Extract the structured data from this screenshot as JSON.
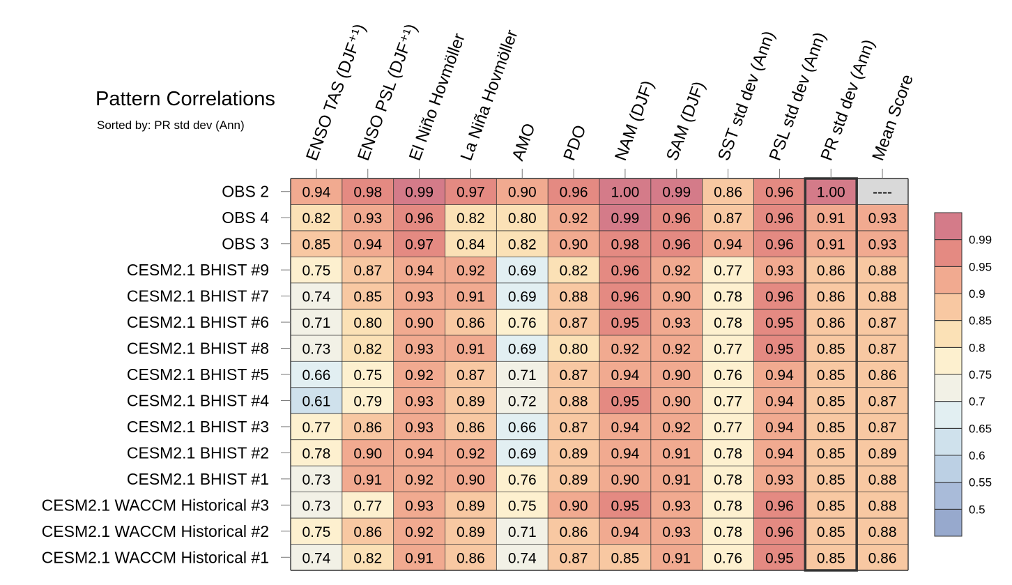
{
  "chart_data": {
    "type": "heatmap",
    "title": "Pattern Correlations",
    "subtitle": "Sorted by: PR std dev (Ann)",
    "columns": [
      "ENSO TAS (DJF⁺¹)",
      "ENSO PSL (DJF⁺¹)",
      "El Niño Hovmöller",
      "La Niña Hovmöller",
      "AMO",
      "PDO",
      "NAM (DJF)",
      "SAM (DJF)",
      "SST std dev (Ann)",
      "PSL std dev (Ann)",
      "PR std dev (Ann)",
      "Mean Score"
    ],
    "highlighted_column": "PR std dev (Ann)",
    "rows": [
      "OBS 2",
      "OBS 4",
      "OBS 3",
      "CESM2.1 BHIST #9",
      "CESM2.1 BHIST #7",
      "CESM2.1 BHIST #6",
      "CESM2.1 BHIST #8",
      "CESM2.1 BHIST #5",
      "CESM2.1 BHIST #4",
      "CESM2.1 BHIST #3",
      "CESM2.1 BHIST #2",
      "CESM2.1 BHIST #1",
      "CESM2.1 WACCM Historical #3",
      "CESM2.1 WACCM Historical #2",
      "CESM2.1 WACCM Historical #1"
    ],
    "values": [
      [
        "0.94",
        "0.98",
        "0.99",
        "0.97",
        "0.90",
        "0.96",
        "1.00",
        "0.99",
        "0.86",
        "0.96",
        "1.00",
        "----"
      ],
      [
        "0.82",
        "0.93",
        "0.96",
        "0.82",
        "0.80",
        "0.92",
        "0.99",
        "0.96",
        "0.87",
        "0.96",
        "0.91",
        "0.93"
      ],
      [
        "0.85",
        "0.94",
        "0.97",
        "0.84",
        "0.82",
        "0.90",
        "0.98",
        "0.96",
        "0.94",
        "0.96",
        "0.91",
        "0.93"
      ],
      [
        "0.75",
        "0.87",
        "0.94",
        "0.92",
        "0.69",
        "0.82",
        "0.96",
        "0.92",
        "0.77",
        "0.93",
        "0.86",
        "0.88"
      ],
      [
        "0.74",
        "0.85",
        "0.93",
        "0.91",
        "0.69",
        "0.88",
        "0.96",
        "0.90",
        "0.78",
        "0.96",
        "0.86",
        "0.88"
      ],
      [
        "0.71",
        "0.80",
        "0.90",
        "0.86",
        "0.76",
        "0.87",
        "0.95",
        "0.93",
        "0.78",
        "0.95",
        "0.86",
        "0.87"
      ],
      [
        "0.73",
        "0.82",
        "0.93",
        "0.91",
        "0.69",
        "0.80",
        "0.92",
        "0.92",
        "0.77",
        "0.95",
        "0.85",
        "0.87"
      ],
      [
        "0.66",
        "0.75",
        "0.92",
        "0.87",
        "0.71",
        "0.87",
        "0.94",
        "0.90",
        "0.76",
        "0.94",
        "0.85",
        "0.86"
      ],
      [
        "0.61",
        "0.79",
        "0.93",
        "0.89",
        "0.72",
        "0.88",
        "0.95",
        "0.90",
        "0.77",
        "0.94",
        "0.85",
        "0.87"
      ],
      [
        "0.77",
        "0.86",
        "0.93",
        "0.86",
        "0.66",
        "0.87",
        "0.94",
        "0.92",
        "0.77",
        "0.94",
        "0.85",
        "0.87"
      ],
      [
        "0.78",
        "0.90",
        "0.94",
        "0.92",
        "0.69",
        "0.89",
        "0.94",
        "0.91",
        "0.78",
        "0.94",
        "0.85",
        "0.89"
      ],
      [
        "0.73",
        "0.91",
        "0.92",
        "0.90",
        "0.76",
        "0.89",
        "0.90",
        "0.91",
        "0.78",
        "0.93",
        "0.85",
        "0.88"
      ],
      [
        "0.73",
        "0.77",
        "0.93",
        "0.89",
        "0.75",
        "0.90",
        "0.95",
        "0.93",
        "0.78",
        "0.96",
        "0.85",
        "0.88"
      ],
      [
        "0.75",
        "0.86",
        "0.92",
        "0.89",
        "0.71",
        "0.86",
        "0.94",
        "0.93",
        "0.78",
        "0.96",
        "0.85",
        "0.88"
      ],
      [
        "0.74",
        "0.82",
        "0.91",
        "0.86",
        "0.74",
        "0.87",
        "0.85",
        "0.91",
        "0.76",
        "0.95",
        "0.85",
        "0.86"
      ]
    ],
    "colorbar": {
      "levels": [
        0.5,
        0.55,
        0.6,
        0.65,
        0.7,
        0.75,
        0.8,
        0.85,
        0.9,
        0.95,
        0.99
      ],
      "tick_labels": [
        "0.5",
        "0.55",
        "0.6",
        "0.65",
        "0.7",
        "0.75",
        "0.8",
        "0.85",
        "0.9",
        "0.95",
        "0.99"
      ],
      "colors": [
        "#97a9cd",
        "#a9bbd9",
        "#bcd0e4",
        "#cfe1ec",
        "#e2eff2",
        "#f2f1e6",
        "#fdf0cf",
        "#fbe1b6",
        "#f8c8a2",
        "#f1aa90",
        "#e48a82",
        "#d47b89"
      ],
      "missing_color": "#d9d9d9"
    }
  }
}
